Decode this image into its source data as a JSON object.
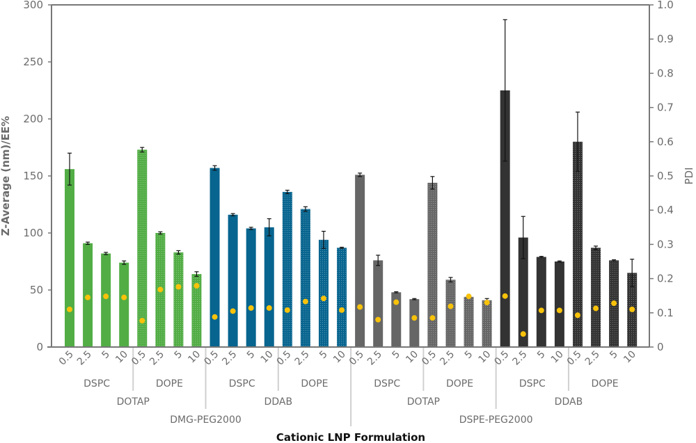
{
  "chart_data": {
    "type": "bar",
    "xlabel": "Cationic LNP Formulation",
    "ylabel": "Z-Average (nm)/EE%",
    "y2label": "PDI",
    "ylim": [
      0,
      300
    ],
    "y2lim": [
      0,
      1.0
    ],
    "yticks": [
      "0",
      "50",
      "100",
      "150",
      "200",
      "250",
      "300"
    ],
    "y2ticks": [
      "0",
      "0.1",
      "0.2",
      "0.3",
      "0.4",
      "0.5",
      "0.6",
      "0.7",
      "0.8",
      "0.9",
      "1.0"
    ],
    "grid": false,
    "categories": [
      "0.5",
      "2.5",
      "5",
      "10",
      "0.5",
      "2.5",
      "5",
      "10",
      "0.5",
      "2.5",
      "5",
      "10",
      "0.5",
      "2.5",
      "5",
      "10",
      "0.5",
      "2.5",
      "5",
      "10",
      "0.5",
      "2.5",
      "5",
      "10",
      "0.5",
      "2.5",
      "5",
      "10",
      "0.5",
      "2.5",
      "5",
      "10"
    ],
    "helper_lipid_groups": [
      "DSPC",
      "DOPE",
      "DSPC",
      "DOPE",
      "DSPC",
      "DOPE",
      "DSPC",
      "DOPE"
    ],
    "cationic_lipid_groups": [
      "DOTAP",
      "DDAB",
      "DOTAP",
      "DDAB"
    ],
    "peg_lipid_groups": [
      "DMG-PEG2000",
      "DSPE-PEG2000"
    ],
    "z_average": [
      156,
      91,
      82,
      74,
      173,
      100,
      83,
      64,
      157,
      116,
      104,
      105,
      136,
      121,
      94,
      87,
      151,
      76,
      48,
      42,
      144,
      59,
      44,
      41,
      225,
      96,
      79,
      75,
      180,
      87,
      76,
      65
    ],
    "z_error": [
      14,
      1,
      1,
      1.5,
      2,
      1,
      1.5,
      2,
      2,
      1,
      1,
      7.5,
      1.5,
      2,
      7.5,
      0.5,
      1.5,
      4.5,
      0.5,
      0.5,
      5.5,
      2,
      1,
      1.5,
      62,
      18.5,
      0.5,
      0.5,
      26,
      1.5,
      0.5,
      12
    ],
    "pdi": [
      0.11,
      0.145,
      0.148,
      0.145,
      0.077,
      0.168,
      0.176,
      0.179,
      0.088,
      0.105,
      0.114,
      0.114,
      0.108,
      0.133,
      0.142,
      0.108,
      0.117,
      0.08,
      0.131,
      0.085,
      0.085,
      0.119,
      0.148,
      0.13,
      0.149,
      0.038,
      0.107,
      0.107,
      0.093,
      0.113,
      0.128,
      0.11
    ],
    "colors": {
      "DMG_DOTAP": "#52ad45",
      "DMG_DDAB": "#08658f",
      "DSPE_DOTAP": "#666666",
      "DSPE_DDAB": "#333333",
      "pdi_marker": "#f8c20a",
      "axis": "#777777",
      "text": "#6b6b6b"
    }
  }
}
